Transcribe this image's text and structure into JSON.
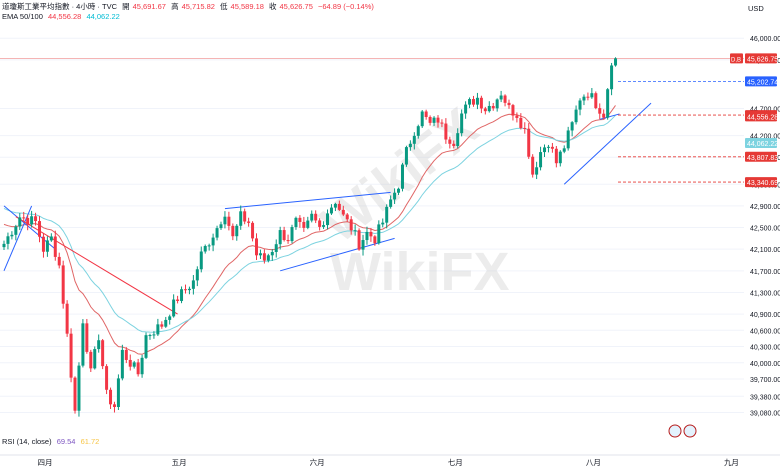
{
  "header": {
    "symbol": "道瓊斯工業平均指數 · 4小時 · TVC",
    "open_label": "開",
    "open_value": "45,691.67",
    "high_label": "高",
    "high_value": "45,715.82",
    "low_label": "低",
    "low_value": "45,589.18",
    "close_label": "收",
    "close_value": "45,626.75",
    "change": "−64.89 (−0.14%)",
    "ema_label": "EMA 50/100",
    "ema50_value": "44,556.28",
    "ema100_value": "44,062.22",
    "rsi_label": "RSI (14, close)",
    "rsi_value": "69.54",
    "rsi_ma_value": "61.72"
  },
  "currency": "USD",
  "colors": {
    "up": "#089981",
    "down": "#f23645",
    "ema50": "#e06666",
    "ema100": "#7dd3e0",
    "trendline": "#2962ff",
    "level_red": "#e53935",
    "level_blue": "#2962ff",
    "grid": "#f0f3fa"
  },
  "chart_data": {
    "type": "candlestick",
    "ylim": [
      38720,
      46300
    ],
    "y_ticks": [
      "46,000.00",
      "45,600.00",
      "44,700.00",
      "44,200.00",
      "43,800.00",
      "43,300.00",
      "42,900.00",
      "42,500.00",
      "42,100.00",
      "41,700.00",
      "41,300.00",
      "40,900.00",
      "40,600.00",
      "40,300.00",
      "40,000.00",
      "39,700.00",
      "39,380.00",
      "39,080.00"
    ],
    "y_tick_values": [
      46000,
      45600,
      44700,
      44200,
      43800,
      43300,
      42900,
      42500,
      42100,
      41700,
      41300,
      40900,
      40600,
      40300,
      40000,
      39700,
      39380,
      39080
    ],
    "x_labels": [
      "四月",
      "五月",
      "六月",
      "七月",
      "八月",
      "九月"
    ],
    "x_label_candle_index": [
      10,
      44,
      79,
      114,
      149,
      184
    ],
    "candle_count": 175,
    "candles_anchor": [
      [
        0,
        42200
      ],
      [
        4,
        42700
      ],
      [
        8,
        42600
      ],
      [
        10,
        42100
      ],
      [
        12,
        42300
      ],
      [
        14,
        41800
      ],
      [
        16,
        40500
      ],
      [
        18,
        39100
      ],
      [
        20,
        40800
      ],
      [
        22,
        39800
      ],
      [
        24,
        40500
      ],
      [
        26,
        39400
      ],
      [
        28,
        39200
      ],
      [
        30,
        40200
      ],
      [
        34,
        39800
      ],
      [
        36,
        40500
      ],
      [
        40,
        40700
      ],
      [
        44,
        41200
      ],
      [
        48,
        41500
      ],
      [
        50,
        42000
      ],
      [
        54,
        42500
      ],
      [
        56,
        42800
      ],
      [
        58,
        42300
      ],
      [
        60,
        42700
      ],
      [
        62,
        42600
      ],
      [
        64,
        42000
      ],
      [
        66,
        41900
      ],
      [
        68,
        42100
      ],
      [
        70,
        42400
      ],
      [
        72,
        42300
      ],
      [
        74,
        42600
      ],
      [
        76,
        42400
      ],
      [
        78,
        42700
      ],
      [
        80,
        42500
      ],
      [
        82,
        42800
      ],
      [
        84,
        43000
      ],
      [
        86,
        42700
      ],
      [
        88,
        42500
      ],
      [
        90,
        42200
      ],
      [
        92,
        42400
      ],
      [
        94,
        42300
      ],
      [
        96,
        42600
      ],
      [
        98,
        43000
      ],
      [
        100,
        43300
      ],
      [
        102,
        43900
      ],
      [
        104,
        44300
      ],
      [
        106,
        44600
      ],
      [
        108,
        44400
      ],
      [
        110,
        44500
      ],
      [
        112,
        44200
      ],
      [
        114,
        44100
      ],
      [
        116,
        44600
      ],
      [
        118,
        44800
      ],
      [
        120,
        44900
      ],
      [
        122,
        44700
      ],
      [
        124,
        44800
      ],
      [
        126,
        45000
      ],
      [
        128,
        44700
      ],
      [
        130,
        44600
      ],
      [
        132,
        44300
      ],
      [
        134,
        43500
      ],
      [
        136,
        43900
      ],
      [
        138,
        44100
      ],
      [
        140,
        43700
      ],
      [
        142,
        44000
      ],
      [
        144,
        44400
      ],
      [
        146,
        44900
      ],
      [
        148,
        45000
      ],
      [
        150,
        44800
      ],
      [
        152,
        44600
      ],
      [
        154,
        45600
      ]
    ],
    "last_close": 45626.75,
    "level_lines": [
      {
        "label": "45,626.75",
        "value": 45626.75,
        "style": "solid",
        "color": "#e53935",
        "tag": "DJI"
      },
      {
        "label": "45,202.74",
        "value": 45202.74,
        "style": "dashed",
        "color": "#2962ff"
      },
      {
        "label": "44,579.20",
        "value": 44579.2,
        "style": "dashed",
        "color": "#e53935"
      },
      {
        "label": "44,556.28",
        "value": 44556.28,
        "style": "none",
        "color": "#e53935"
      },
      {
        "label": "44,062.22",
        "value": 44062.22,
        "style": "none",
        "color": "#7dd3e0"
      },
      {
        "label": "43,807.83",
        "value": 43807.83,
        "style": "dashed",
        "color": "#e53935"
      },
      {
        "label": "43,340.69",
        "value": 43340.69,
        "style": "dashed",
        "color": "#e53935"
      }
    ],
    "last_price_tag": "D,B",
    "watermark": "WikiFX"
  }
}
